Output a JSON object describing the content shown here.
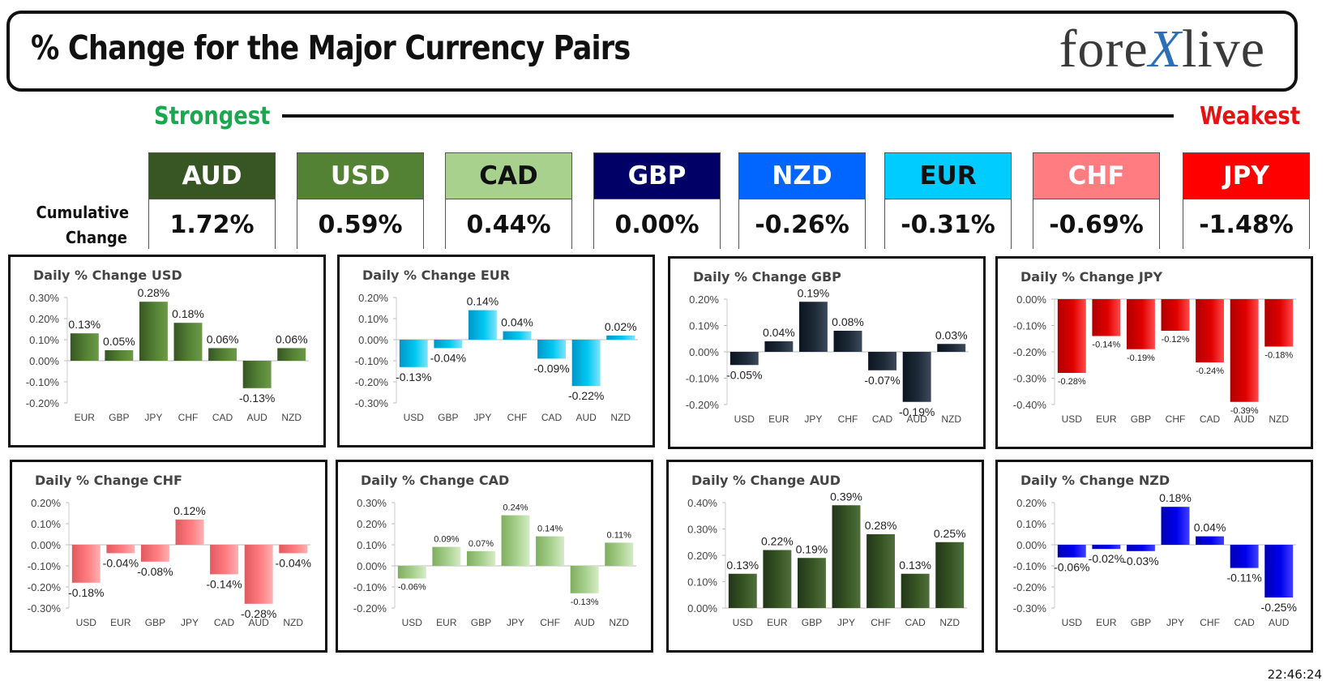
{
  "header": {
    "title": "% Change for the Major Currency Pairs",
    "logo_left": "fore",
    "logo_x": "X",
    "logo_right": "live"
  },
  "ranking": {
    "strongest_label": "Strongest",
    "weakest_label": "Weakest",
    "cumulative_label_line1": "Cumulative",
    "cumulative_label_line2": "Change",
    "currencies": [
      {
        "code": "AUD",
        "value": "1.72%",
        "bg": "#375623",
        "fg": "#ffffff"
      },
      {
        "code": "USD",
        "value": "0.59%",
        "bg": "#548235",
        "fg": "#ffffff"
      },
      {
        "code": "CAD",
        "value": "0.44%",
        "bg": "#a9d18e",
        "fg": "#111111"
      },
      {
        "code": "GBP",
        "value": "0.00%",
        "bg": "#000066",
        "fg": "#ffffff"
      },
      {
        "code": "NZD",
        "value": "-0.26%",
        "bg": "#0066ff",
        "fg": "#ffffff"
      },
      {
        "code": "EUR",
        "value": "-0.31%",
        "bg": "#00ccff",
        "fg": "#111111"
      },
      {
        "code": "CHF",
        "value": "-0.69%",
        "bg": "#ff7c80",
        "fg": "#ffffff"
      },
      {
        "code": "JPY",
        "value": "-1.48%",
        "bg": "#ff0000",
        "fg": "#ffffff"
      }
    ]
  },
  "chart_data": [
    {
      "type": "bar",
      "title": "Daily % Change USD",
      "categories": [
        "EUR",
        "GBP",
        "JPY",
        "CHF",
        "CAD",
        "AUD",
        "NZD"
      ],
      "values": [
        0.13,
        0.05,
        0.28,
        0.18,
        0.06,
        -0.13,
        0.06
      ],
      "labels": [
        "0.13%",
        "0.05%",
        "0.28%",
        "0.18%",
        "0.06%",
        "-0.13%",
        "0.06%"
      ],
      "yticks": [
        "0.30%",
        "0.20%",
        "0.10%",
        "0.00%",
        "-0.10%",
        "-0.20%"
      ],
      "ylim": [
        -0.2,
        0.3
      ],
      "colors": [
        "#375623",
        "#548235",
        "#6b9a47"
      ],
      "label_size": 14
    },
    {
      "type": "bar",
      "title": "Daily % Change EUR",
      "categories": [
        "USD",
        "GBP",
        "JPY",
        "CHF",
        "CAD",
        "AUD",
        "NZD"
      ],
      "values": [
        -0.13,
        -0.04,
        0.14,
        0.04,
        -0.09,
        -0.22,
        0.02
      ],
      "labels": [
        "-0.13%",
        "-0.04%",
        "0.14%",
        "0.04%",
        "-0.09%",
        "-0.22%",
        "0.02%"
      ],
      "yticks": [
        "0.20%",
        "0.10%",
        "0.00%",
        "-0.10%",
        "-0.20%",
        "-0.30%"
      ],
      "ylim": [
        -0.3,
        0.2
      ],
      "colors": [
        "#0096c8",
        "#00c8f0",
        "#7fe4fb"
      ],
      "label_size": 14
    },
    {
      "type": "bar",
      "title": "Daily % Change GBP",
      "categories": [
        "USD",
        "EUR",
        "JPY",
        "CHF",
        "CAD",
        "AUD",
        "NZD"
      ],
      "values": [
        -0.05,
        0.04,
        0.19,
        0.08,
        -0.07,
        -0.19,
        0.03
      ],
      "labels": [
        "-0.05%",
        "0.04%",
        "0.19%",
        "0.08%",
        "-0.07%",
        "-0.19%",
        "0.03%"
      ],
      "yticks": [
        "0.20%",
        "0.10%",
        "0.00%",
        "-0.10%",
        "-0.20%"
      ],
      "ylim": [
        -0.2,
        0.2
      ],
      "colors": [
        "#0c1520",
        "#1e2a38",
        "#3c4a5c"
      ],
      "label_size": 14
    },
    {
      "type": "bar",
      "title": "Daily % Change JPY",
      "categories": [
        "USD",
        "EUR",
        "GBP",
        "CHF",
        "CAD",
        "AUD",
        "NZD"
      ],
      "values": [
        -0.28,
        -0.14,
        -0.19,
        -0.12,
        -0.24,
        -0.39,
        -0.18
      ],
      "labels": [
        "-0.28%",
        "-0.14%",
        "-0.19%",
        "-0.12%",
        "-0.24%",
        "-0.39%",
        "-0.18%"
      ],
      "yticks": [
        "0.00%",
        "-0.10%",
        "-0.20%",
        "-0.30%",
        "-0.40%"
      ],
      "ylim": [
        -0.4,
        0.0
      ],
      "colors": [
        "#b00000",
        "#e00000",
        "#ff4a4a"
      ],
      "label_size": 11
    },
    {
      "type": "bar",
      "title": "Daily % Change CHF",
      "categories": [
        "USD",
        "EUR",
        "GBP",
        "JPY",
        "CAD",
        "AUD",
        "NZD"
      ],
      "values": [
        -0.18,
        -0.04,
        -0.08,
        0.12,
        -0.14,
        -0.28,
        -0.04
      ],
      "labels": [
        "-0.18%",
        "-0.04%",
        "-0.08%",
        "0.12%",
        "-0.14%",
        "-0.28%",
        "-0.04%"
      ],
      "yticks": [
        "0.20%",
        "0.10%",
        "0.00%",
        "-0.10%",
        "-0.20%",
        "-0.30%"
      ],
      "ylim": [
        -0.3,
        0.2
      ],
      "colors": [
        "#e05a5e",
        "#ff7c80",
        "#ffb0b2"
      ],
      "label_size": 14
    },
    {
      "type": "bar",
      "title": "Daily % Change CAD",
      "categories": [
        "USD",
        "EUR",
        "GBP",
        "JPY",
        "CHF",
        "AUD",
        "NZD"
      ],
      "values": [
        -0.06,
        0.09,
        0.07,
        0.24,
        0.14,
        -0.13,
        0.11
      ],
      "labels": [
        "-0.06%",
        "0.09%",
        "0.07%",
        "0.24%",
        "0.14%",
        "-0.13%",
        "0.11%"
      ],
      "yticks": [
        "0.30%",
        "0.20%",
        "0.10%",
        "0.00%",
        "-0.10%",
        "-0.20%"
      ],
      "ylim": [
        -0.2,
        0.3
      ],
      "colors": [
        "#7fae5f",
        "#a9d18e",
        "#d6ebc6"
      ],
      "label_size": 11
    },
    {
      "type": "bar",
      "title": "Daily % Change AUD",
      "categories": [
        "USD",
        "EUR",
        "GBP",
        "JPY",
        "CHF",
        "CAD",
        "NZD"
      ],
      "values": [
        0.13,
        0.22,
        0.19,
        0.39,
        0.28,
        0.13,
        0.25
      ],
      "labels": [
        "0.13%",
        "0.22%",
        "0.19%",
        "0.39%",
        "0.28%",
        "0.13%",
        "0.25%"
      ],
      "yticks": [
        "0.40%",
        "0.30%",
        "0.20%",
        "0.10%",
        "0.00%"
      ],
      "ylim": [
        0.0,
        0.4
      ],
      "colors": [
        "#22361a",
        "#375623",
        "#4f6f3c"
      ],
      "label_size": 14
    },
    {
      "type": "bar",
      "title": "Daily % Change NZD",
      "categories": [
        "USD",
        "EUR",
        "GBP",
        "JPY",
        "CHF",
        "CAD",
        "AUD"
      ],
      "values": [
        -0.06,
        -0.02,
        -0.03,
        0.18,
        0.04,
        -0.11,
        -0.25
      ],
      "labels": [
        "-0.06%",
        "-0.02%",
        "-0.03%",
        "0.18%",
        "0.04%",
        "-0.11%",
        "-0.25%"
      ],
      "yticks": [
        "0.20%",
        "0.10%",
        "0.00%",
        "-0.10%",
        "-0.20%",
        "-0.30%"
      ],
      "ylim": [
        -0.3,
        0.2
      ],
      "colors": [
        "#0000b4",
        "#0000ee",
        "#4040ff"
      ],
      "label_size": 14
    }
  ],
  "footer": {
    "time": "22:46:24"
  }
}
